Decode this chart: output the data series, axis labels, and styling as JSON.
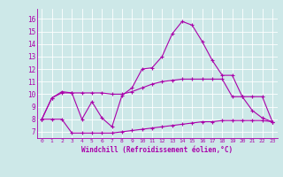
{
  "xlabel": "Windchill (Refroidissement éolien,°C)",
  "background_color": "#cde8e8",
  "grid_color": "#b0d8d8",
  "line_color": "#aa00aa",
  "x_ticks": [
    0,
    1,
    2,
    3,
    4,
    5,
    6,
    7,
    8,
    9,
    10,
    11,
    12,
    13,
    14,
    15,
    16,
    17,
    18,
    19,
    20,
    21,
    22,
    23
  ],
  "y_ticks": [
    7,
    8,
    9,
    10,
    11,
    12,
    13,
    14,
    15,
    16
  ],
  "ylim": [
    6.5,
    16.8
  ],
  "xlim": [
    -0.5,
    23.5
  ],
  "line1_x": [
    0,
    1,
    2,
    3,
    4,
    5,
    6,
    7,
    8,
    9,
    10,
    11,
    12,
    13,
    14,
    15,
    16,
    17,
    18,
    19,
    20,
    21,
    22,
    23
  ],
  "line1_y": [
    8.0,
    9.7,
    10.2,
    10.1,
    8.0,
    9.4,
    8.1,
    7.4,
    9.9,
    10.5,
    12.0,
    12.1,
    13.0,
    14.8,
    15.8,
    15.5,
    14.2,
    12.7,
    11.5,
    11.5,
    9.8,
    8.7,
    8.1,
    7.8
  ],
  "line2_x": [
    0,
    1,
    2,
    3,
    4,
    5,
    6,
    7,
    8,
    9,
    10,
    11,
    12,
    13,
    14,
    15,
    16,
    17,
    18,
    19,
    20,
    21,
    22,
    23
  ],
  "line2_y": [
    8.0,
    9.7,
    10.1,
    10.1,
    10.1,
    10.1,
    10.1,
    10.0,
    10.0,
    10.2,
    10.5,
    10.8,
    11.0,
    11.1,
    11.2,
    11.2,
    11.2,
    11.2,
    11.2,
    9.8,
    9.8,
    9.8,
    9.8,
    7.8
  ],
  "line3_x": [
    0,
    1,
    2,
    3,
    4,
    5,
    6,
    7,
    8,
    9,
    10,
    11,
    12,
    13,
    14,
    15,
    16,
    17,
    18,
    19,
    20,
    21,
    22,
    23
  ],
  "line3_y": [
    8.0,
    8.0,
    8.0,
    6.9,
    6.9,
    6.9,
    6.9,
    6.9,
    7.0,
    7.1,
    7.2,
    7.3,
    7.4,
    7.5,
    7.6,
    7.7,
    7.8,
    7.8,
    7.9,
    7.9,
    7.9,
    7.9,
    7.9,
    7.8
  ]
}
